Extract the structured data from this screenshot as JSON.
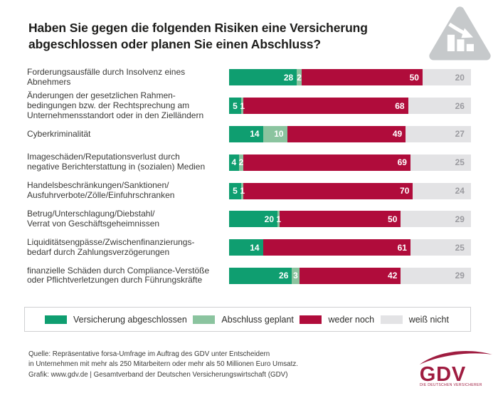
{
  "chart_data": {
    "type": "bar",
    "stacked": true,
    "orientation": "horizontal",
    "value_unit": "percent",
    "xlim": [
      0,
      100
    ],
    "grid": false,
    "legend_position": "bottom",
    "title": "Haben Sie gegen die folgenden Risiken eine Versicherung\nabgeschlossen oder planen Sie einen Abschluss?",
    "categories": [
      "Forderungsausfälle durch Insolvenz eines\nAbnehmers",
      "Änderungen der gesetzlichen Rahmen-\nbedingungen bzw. der Rechtsprechung am\nUnternehmensstandort oder in den Zielländern",
      "Cyberkriminalität",
      "Imageschäden/Reputationsverlust durch\nnegative Berichterstattung in (sozialen) Medien",
      "Handelsbeschränkungen/Sanktionen/\nAusfuhrverbote/Zölle/Einfuhrschranken",
      "Betrug/Unterschlagung/Diebstahl/\nVerrat von Geschäftsgeheimnissen",
      "Liquiditätsengpässe/Zwischenfinanzierungs-\nbedarf durch Zahlungsverzögerungen",
      "finanzielle Schäden durch Compliance-Verstöße\noder Pflichtverletzungen durch Führungskräfte"
    ],
    "series": [
      {
        "name": "Versicherung abgeschlossen",
        "color": "#0f9e70",
        "values": [
          28,
          5,
          14,
          4,
          5,
          20,
          14,
          26
        ]
      },
      {
        "name": "Abschluss geplant",
        "color": "#8bc49f",
        "values": [
          2,
          1,
          10,
          2,
          1,
          1,
          0,
          3
        ]
      },
      {
        "name": "weder noch",
        "color": "#b00c3b",
        "values": [
          50,
          68,
          49,
          69,
          70,
          50,
          61,
          42
        ]
      },
      {
        "name": "weiß nicht",
        "color": "#e3e3e5",
        "values": [
          20,
          26,
          27,
          25,
          24,
          29,
          25,
          29
        ]
      }
    ]
  },
  "footer": {
    "source_lines": [
      "Quelle: Repräsentative forsa-Umfrage im Auftrag des GDV unter Entscheidern",
      "in Unternehmen mit mehr als 250 Mitarbeitern oder mehr als 50 Millionen Euro Umsatz.",
      "Grafik: www.gdv.de | Gesamtverband der Deutschen Versicherungswirtschaft (GDV)"
    ],
    "logo": {
      "text": "GDV",
      "tagline": "DIE DEUTSCHEN VERSICHERER",
      "color": "#9f1c40"
    }
  },
  "colors": {
    "insured_green": "#0f9e70",
    "planned_light_green": "#8bc49f",
    "neither_crimson": "#b00c3b",
    "dont_know_gray": "#e3e3e5",
    "gray_value_text": "#9b9ba0",
    "triangle_icon_gray": "#c6c9cb"
  }
}
